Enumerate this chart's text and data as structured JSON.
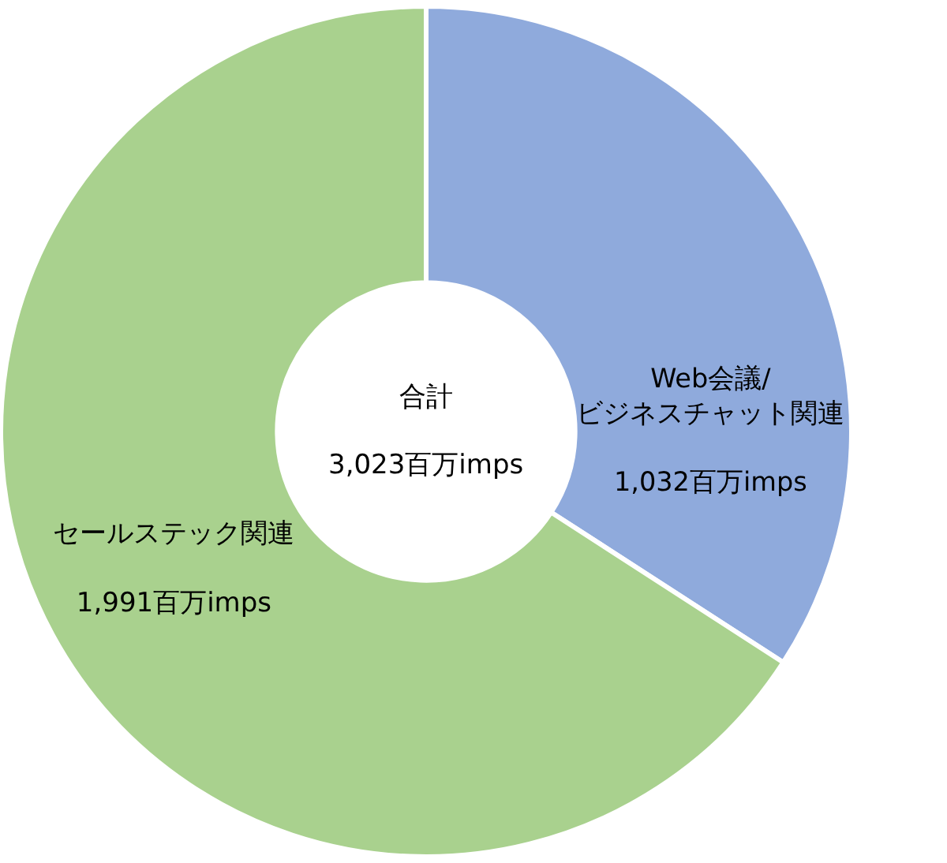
{
  "chart_data": {
    "type": "donut",
    "categories": [
      "Web会議/ビジネスチャット関連",
      "セールステック関連"
    ],
    "values": [
      1032,
      1991
    ],
    "colors": [
      "#8faadc",
      "#a9d18e"
    ],
    "value_labels": [
      "1,032百万imps",
      "1,991百万imps"
    ],
    "annotations": [
      "合計",
      "3,023百万imps"
    ],
    "legend": false
  }
}
